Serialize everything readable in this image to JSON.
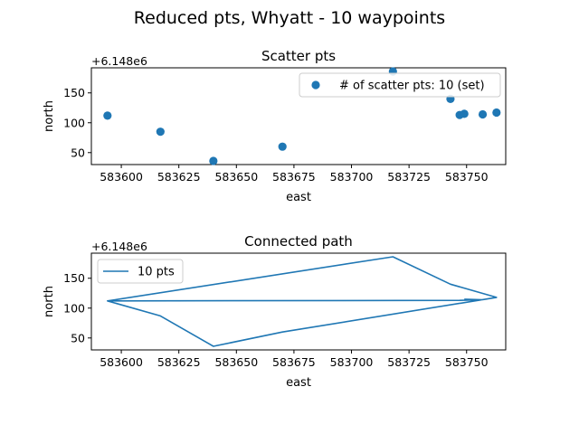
{
  "figure": {
    "suptitle": "Reduced pts, Whyatt - 10 waypoints"
  },
  "chart_data": [
    {
      "type": "scatter",
      "title": "Scatter pts",
      "xlabel": "east",
      "ylabel": "north",
      "offset_text": "+6.148e6",
      "xlim": [
        583587,
        583767
      ],
      "ylim": [
        30,
        192
      ],
      "xticks": [
        583600,
        583625,
        583650,
        583675,
        583700,
        583725,
        583750
      ],
      "yticks": [
        50,
        100,
        150
      ],
      "legend": {
        "label": "# of scatter pts: 10 (set)",
        "placement": "upper right"
      },
      "color": "#1f77b4",
      "points": [
        {
          "x": 583594,
          "y": 112
        },
        {
          "x": 583617,
          "y": 85
        },
        {
          "x": 583640,
          "y": 36
        },
        {
          "x": 583670,
          "y": 60
        },
        {
          "x": 583718,
          "y": 186
        },
        {
          "x": 583743,
          "y": 140
        },
        {
          "x": 583747,
          "y": 113
        },
        {
          "x": 583749,
          "y": 115
        },
        {
          "x": 583757,
          "y": 114
        },
        {
          "x": 583763,
          "y": 117
        }
      ]
    },
    {
      "type": "line",
      "title": "Connected path",
      "xlabel": "east",
      "ylabel": "north",
      "offset_text": "+6.148e6",
      "xlim": [
        583587,
        583767
      ],
      "ylim": [
        30,
        192
      ],
      "xticks": [
        583600,
        583625,
        583650,
        583675,
        583700,
        583725,
        583750
      ],
      "yticks": [
        50,
        100,
        150
      ],
      "legend": {
        "label": "10 pts",
        "placement": "upper left"
      },
      "color": "#1f77b4",
      "path": [
        {
          "x": 583747,
          "y": 113
        },
        {
          "x": 583594,
          "y": 112
        },
        {
          "x": 583617,
          "y": 87
        },
        {
          "x": 583640,
          "y": 36
        },
        {
          "x": 583670,
          "y": 60
        },
        {
          "x": 583763,
          "y": 118
        },
        {
          "x": 583743,
          "y": 140
        },
        {
          "x": 583718,
          "y": 186
        },
        {
          "x": 583594,
          "y": 112
        },
        {
          "x": 583747,
          "y": 113
        },
        {
          "x": 583757,
          "y": 114
        },
        {
          "x": 583749,
          "y": 115
        }
      ]
    }
  ]
}
